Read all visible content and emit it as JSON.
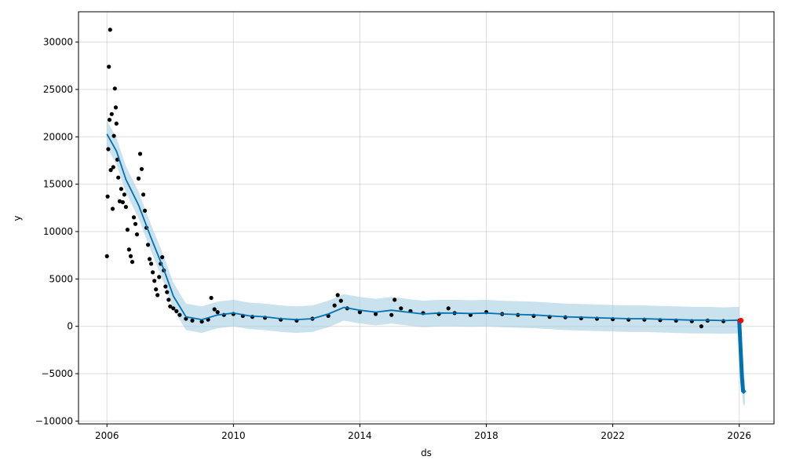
{
  "chart_data": {
    "type": "line",
    "title": "",
    "xlabel": "ds",
    "ylabel": "y",
    "xlim": [
      2005.1,
      2027.1
    ],
    "ylim": [
      -10300,
      33200
    ],
    "grid": true,
    "legend": "none",
    "x_ticks": [
      {
        "value": 2006,
        "label": "2006"
      },
      {
        "value": 2010,
        "label": "2010"
      },
      {
        "value": 2014,
        "label": "2014"
      },
      {
        "value": 2018,
        "label": "2018"
      },
      {
        "value": 2022,
        "label": "2022"
      },
      {
        "value": 2026,
        "label": "2026"
      }
    ],
    "y_ticks": [
      {
        "value": -10000,
        "label": "−10000"
      },
      {
        "value": -5000,
        "label": "−5000"
      },
      {
        "value": 0,
        "label": "0"
      },
      {
        "value": 5000,
        "label": "5000"
      },
      {
        "value": 10000,
        "label": "10000"
      },
      {
        "value": 15000,
        "label": "15000"
      },
      {
        "value": 20000,
        "label": "20000"
      },
      {
        "value": 25000,
        "label": "25000"
      },
      {
        "value": 30000,
        "label": "30000"
      }
    ],
    "colors": {
      "observed": "#000000",
      "forecast": "#0072B2",
      "interval": "#A6CEE3",
      "highlight": "#FF0000"
    },
    "forecast": {
      "x": [
        2006.0,
        2006.3,
        2006.6,
        2007.0,
        2007.4,
        2007.8,
        2008.1,
        2008.5,
        2009.0,
        2009.5,
        2010.0,
        2010.5,
        2011.0,
        2011.5,
        2012.0,
        2012.5,
        2013.0,
        2013.5,
        2014.0,
        2014.5,
        2015.0,
        2015.5,
        2016.0,
        2016.5,
        2017.0,
        2017.5,
        2018.0,
        2018.5,
        2019.0,
        2019.5,
        2020.0,
        2020.5,
        2021.0,
        2021.5,
        2022.0,
        2022.5,
        2023.0,
        2023.5,
        2024.0,
        2024.5,
        2025.0,
        2025.5,
        2026.0
      ],
      "yhat": [
        20300,
        18500,
        15500,
        12800,
        9300,
        6000,
        3200,
        1000,
        700,
        1200,
        1400,
        1100,
        1000,
        800,
        700,
        800,
        1300,
        2000,
        1700,
        1500,
        1700,
        1500,
        1300,
        1400,
        1400,
        1350,
        1400,
        1300,
        1250,
        1200,
        1100,
        1000,
        950,
        900,
        850,
        800,
        800,
        750,
        700,
        650,
        650,
        600,
        650
      ],
      "lower": [
        18900,
        17100,
        14100,
        11400,
        7900,
        4600,
        1800,
        -400,
        -700,
        -200,
        0,
        -300,
        -400,
        -600,
        -700,
        -600,
        -100,
        600,
        300,
        100,
        300,
        100,
        -100,
        0,
        0,
        -50,
        0,
        -100,
        -150,
        -200,
        -300,
        -400,
        -450,
        -500,
        -550,
        -600,
        -600,
        -650,
        -700,
        -750,
        -750,
        -800,
        -750
      ],
      "upper": [
        21700,
        19900,
        16900,
        14200,
        10700,
        7400,
        4600,
        2400,
        2100,
        2600,
        2800,
        2500,
        2400,
        2200,
        2100,
        2200,
        2700,
        3400,
        3100,
        2900,
        3100,
        2900,
        2700,
        2800,
        2800,
        2750,
        2800,
        2700,
        2650,
        2600,
        2500,
        2400,
        2350,
        2300,
        2250,
        2200,
        2200,
        2150,
        2100,
        2050,
        2050,
        2000,
        2050
      ]
    },
    "forecast_tail": {
      "x": [
        2026.0,
        2026.03,
        2026.06,
        2026.09,
        2026.12,
        2026.15,
        2026.18
      ],
      "yhat": [
        650,
        -1500,
        -3500,
        -5500,
        -6800,
        -6900,
        -7000
      ],
      "lower": [
        -750,
        -2900,
        -4900,
        -6900,
        -8200,
        -8300,
        -8400
      ],
      "upper": [
        2050,
        -100,
        -2100,
        -4100,
        -5400,
        -5500,
        -5600
      ]
    },
    "observed": {
      "x": [
        2006.0,
        2006.02,
        2006.04,
        2006.06,
        2006.08,
        2006.1,
        2006.12,
        2006.15,
        2006.18,
        2006.2,
        2006.22,
        2006.25,
        2006.28,
        2006.3,
        2006.33,
        2006.36,
        2006.4,
        2006.45,
        2006.5,
        2006.55,
        2006.6,
        2006.65,
        2006.7,
        2006.75,
        2006.8,
        2006.85,
        2006.9,
        2006.95,
        2007.0,
        2007.05,
        2007.1,
        2007.15,
        2007.2,
        2007.25,
        2007.3,
        2007.35,
        2007.4,
        2007.45,
        2007.5,
        2007.55,
        2007.6,
        2007.65,
        2007.7,
        2007.75,
        2007.8,
        2007.85,
        2007.9,
        2007.95,
        2008.0,
        2008.1,
        2008.2,
        2008.3,
        2008.5,
        2008.7,
        2009.0,
        2009.2,
        2009.3,
        2009.4,
        2009.5,
        2009.7,
        2010.0,
        2010.3,
        2010.6,
        2011.0,
        2011.5,
        2012.0,
        2012.5,
        2013.0,
        2013.2,
        2013.3,
        2013.4,
        2013.6,
        2014.0,
        2014.5,
        2015.0,
        2015.1,
        2015.3,
        2015.6,
        2016.0,
        2016.5,
        2016.8,
        2017.0,
        2017.5,
        2018.0,
        2018.5,
        2019.0,
        2019.5,
        2020.0,
        2020.5,
        2021.0,
        2021.5,
        2022.0,
        2022.5,
        2023.0,
        2023.5,
        2024.0,
        2024.5,
        2024.8,
        2025.0,
        2025.5,
        2026.0
      ],
      "y": [
        7400,
        13700,
        18700,
        27400,
        21800,
        31300,
        16500,
        22400,
        12400,
        16800,
        20100,
        25100,
        23100,
        21400,
        17600,
        15700,
        13200,
        14500,
        13100,
        13900,
        12600,
        10200,
        8100,
        7400,
        6800,
        11500,
        10800,
        9700,
        15600,
        18200,
        16600,
        13900,
        12200,
        10400,
        8600,
        7100,
        6600,
        5700,
        4800,
        3900,
        3300,
        5200,
        6600,
        7300,
        5900,
        4200,
        3600,
        2800,
        2100,
        1900,
        1600,
        1200,
        800,
        600,
        500,
        700,
        3000,
        1800,
        1500,
        1200,
        1300,
        1100,
        1000,
        900,
        700,
        600,
        800,
        1100,
        2200,
        3300,
        2700,
        1900,
        1500,
        1300,
        1200,
        2800,
        1900,
        1600,
        1400,
        1300,
        1900,
        1400,
        1200,
        1500,
        1300,
        1200,
        1100,
        1000,
        950,
        850,
        800,
        750,
        700,
        700,
        650,
        600,
        550,
        0,
        600,
        550,
        600
      ]
    },
    "highlight_point": {
      "x": 2026.05,
      "y": 600
    }
  }
}
